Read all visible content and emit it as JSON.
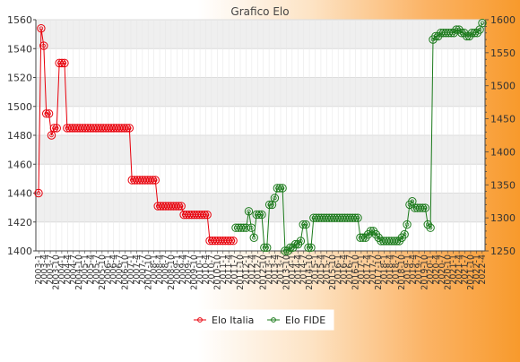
{
  "chart_data": {
    "type": "line",
    "title": "Grafico Elo",
    "xlabel": "",
    "ylabel": "",
    "grid": true,
    "legend_position": "bottom-center",
    "axes": {
      "left": {
        "min": 1400,
        "max": 1560,
        "ticks": [
          1400,
          1420,
          1440,
          1460,
          1480,
          1500,
          1520,
          1540,
          1560
        ]
      },
      "right": {
        "min": 1250,
        "max": 1600,
        "ticks": [
          1250,
          1300,
          1350,
          1400,
          1450,
          1500,
          1550,
          1600
        ]
      }
    },
    "x_tick_labels": [
      "2003-1",
      "2003-4",
      "2003-7",
      "2003-10",
      "2004-1",
      "2004-4",
      "2004-7",
      "2004-10",
      "2005-1",
      "2005-4",
      "2005-7",
      "2005-10",
      "2006-1",
      "2006-4",
      "2006-7",
      "2006-10",
      "2007-1",
      "2007-4",
      "2007-7",
      "2007-10",
      "2008-1",
      "2008-4",
      "2008-7",
      "2008-10",
      "2009-1",
      "2009-4",
      "2009-7",
      "2009-10",
      "2010-1",
      "2010-4",
      "2010-7",
      "2010-10",
      "2011-1",
      "2011-4",
      "2011-7",
      "2011-10",
      "2012-1",
      "2012-4",
      "2012-7",
      "2012-10",
      "2013-1",
      "2013-4",
      "2013-7",
      "2013-10",
      "2014-1",
      "2014-4",
      "2014-7",
      "2014-10",
      "2015-1",
      "2015-4",
      "2015-7",
      "2015-10",
      "2016-1",
      "2016-4",
      "2016-7",
      "2016-10",
      "2017-1",
      "2017-4",
      "2017-7",
      "2017-10",
      "2018-1",
      "2018-4",
      "2018-7",
      "2018-10",
      "2019-1",
      "2019-4",
      "2019-7",
      "2019-10",
      "2020-1",
      "2020-4",
      "2020-7",
      "2020-10",
      "2021-1",
      "2021-4",
      "2021-7",
      "2021-10",
      "2022-1",
      "2022-4"
    ],
    "series": [
      {
        "name": "Elo Italia",
        "color": "#e8000b",
        "axis": "left",
        "values": [
          1440,
          1554,
          1542,
          1495,
          1495,
          1480,
          1485,
          1485,
          1530,
          1530,
          1530,
          1485,
          1485,
          1485,
          1485,
          1485,
          1485,
          1485,
          1485,
          1485,
          1485,
          1485,
          1485,
          1485,
          1485,
          1485,
          1485,
          1485,
          1485,
          1485,
          1485,
          1485,
          1485,
          1485,
          1485,
          1485,
          1449,
          1449,
          1449,
          1449,
          1449,
          1449,
          1449,
          1449,
          1449,
          1449,
          1431,
          1431,
          1431,
          1431,
          1431,
          1431,
          1431,
          1431,
          1431,
          1431,
          1425,
          1425,
          1425,
          1425,
          1425,
          1425,
          1425,
          1425,
          1425,
          1425,
          1407,
          1407,
          1407,
          1407,
          1407,
          1407,
          1407,
          1407,
          1407,
          1407
        ]
      },
      {
        "name": "Elo FIDE",
        "color": "#1b7a1b",
        "axis": "right",
        "start_index": 76,
        "values": [
          1285,
          1285,
          1285,
          1285,
          1285,
          1310,
          1285,
          1270,
          1305,
          1305,
          1305,
          1255,
          1255,
          1320,
          1320,
          1330,
          1345,
          1345,
          1345,
          1250,
          1250,
          1255,
          1255,
          1260,
          1260,
          1265,
          1290,
          1290,
          1255,
          1255,
          1300,
          1300,
          1300,
          1300,
          1300,
          1300,
          1300,
          1300,
          1300,
          1300,
          1300,
          1300,
          1300,
          1300,
          1300,
          1300,
          1300,
          1300,
          1270,
          1270,
          1270,
          1275,
          1280,
          1280,
          1275,
          1270,
          1265,
          1265,
          1265,
          1265,
          1265,
          1265,
          1265,
          1265,
          1270,
          1275,
          1290,
          1320,
          1325,
          1315,
          1315,
          1315,
          1315,
          1315,
          1290,
          1285,
          1570,
          1575,
          1575,
          1580,
          1580,
          1580,
          1580,
          1580,
          1580,
          1585,
          1585,
          1580,
          1580,
          1575,
          1575,
          1580,
          1580,
          1580,
          1585,
          1595
        ]
      }
    ]
  }
}
